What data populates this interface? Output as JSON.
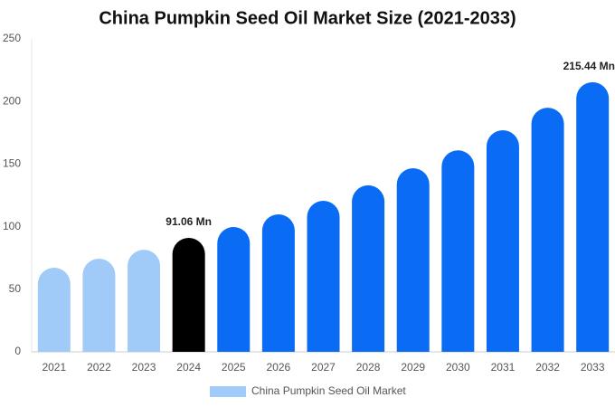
{
  "chart_data": {
    "type": "bar",
    "title": "China Pumpkin Seed Oil Market Size (2021-2033)",
    "categories": [
      "2021",
      "2022",
      "2023",
      "2024",
      "2025",
      "2026",
      "2027",
      "2028",
      "2029",
      "2030",
      "2031",
      "2032",
      "2033"
    ],
    "series": [
      {
        "name": "China Pumpkin Seed Oil Market",
        "color": "#a0cbf8",
        "values": [
          67.2,
          74.4,
          81.6,
          91.06,
          99.7,
          109.8,
          120.7,
          133,
          146.7,
          161,
          177,
          195,
          215.44
        ],
        "value_labels": [
          null,
          null,
          null,
          "91.06 Mn",
          null,
          null,
          null,
          null,
          null,
          null,
          null,
          null,
          "215.44 Mn"
        ],
        "colors": [
          "#a0cbf8",
          "#a0cbf8",
          "#a0cbf8",
          "#000000",
          "#0a6cf5",
          "#0a6cf5",
          "#0a6cf5",
          "#0a6cf5",
          "#0a6cf5",
          "#0a6cf5",
          "#0a6cf5",
          "#0a6cf5",
          "#0a6cf5"
        ]
      }
    ],
    "ylim": [
      0,
      250
    ],
    "yticks": [
      0,
      50,
      100,
      150,
      200,
      250
    ],
    "grid": false
  }
}
